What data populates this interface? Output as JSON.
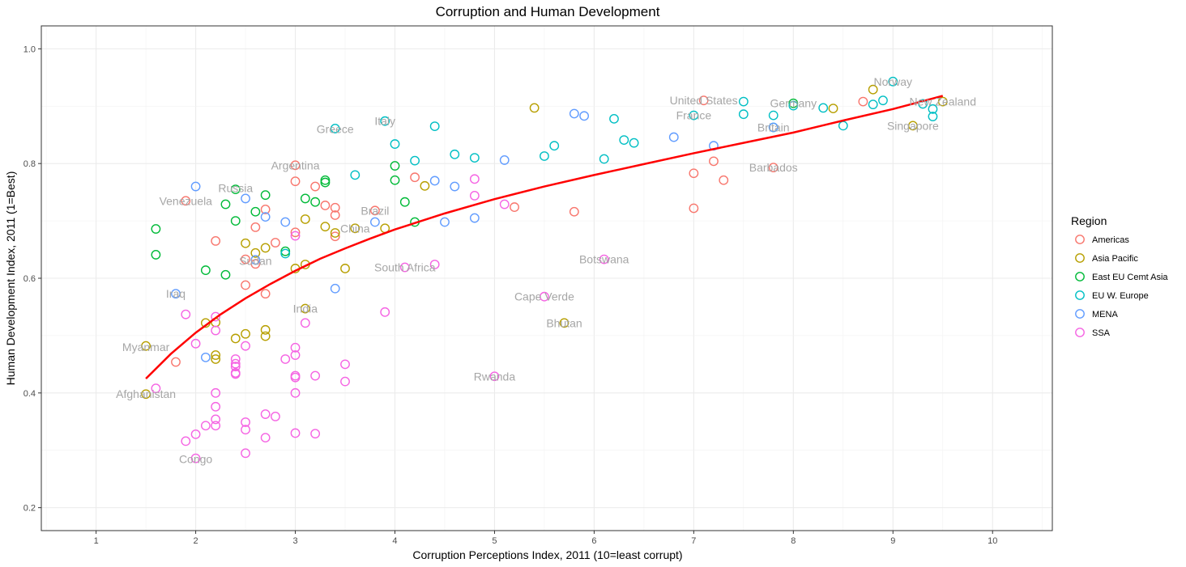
{
  "chart_data": {
    "type": "scatter",
    "title": "Corruption and Human Development",
    "xlabel": "Corruption Perceptions Index, 2011 (10=least corrupt)",
    "ylabel": "Human Development Index, 2011 (1=Best)",
    "xlim": [
      0.45,
      10.6
    ],
    "ylim": [
      0.16,
      1.04
    ],
    "x_ticks": [
      1,
      2,
      3,
      4,
      5,
      6,
      7,
      8,
      9,
      10
    ],
    "y_ticks": [
      0.2,
      0.4,
      0.6,
      0.8,
      1.0
    ],
    "y_tick_labels": [
      "0.2",
      "0.4",
      "0.6",
      "0.8",
      "1.0"
    ],
    "grid": true,
    "legend": {
      "title": "Region",
      "position": "right"
    },
    "series": [
      {
        "name": "Americas",
        "color": "#F8766D",
        "points": [
          [
            1.8,
            0.454
          ],
          [
            1.9,
            0.735
          ],
          [
            2.2,
            0.665
          ],
          [
            2.5,
            0.633
          ],
          [
            2.5,
            0.588
          ],
          [
            2.6,
            0.689
          ],
          [
            2.6,
            0.625
          ],
          [
            2.7,
            0.72
          ],
          [
            2.7,
            0.573
          ],
          [
            2.8,
            0.662
          ],
          [
            3.0,
            0.797
          ],
          [
            3.0,
            0.769
          ],
          [
            3.0,
            0.68
          ],
          [
            3.2,
            0.76
          ],
          [
            3.3,
            0.727
          ],
          [
            3.4,
            0.723
          ],
          [
            3.4,
            0.71
          ],
          [
            3.4,
            0.673
          ],
          [
            3.8,
            0.718
          ],
          [
            4.2,
            0.776
          ],
          [
            5.2,
            0.724
          ],
          [
            5.8,
            0.716
          ],
          [
            7.0,
            0.783
          ],
          [
            7.0,
            0.722
          ],
          [
            7.1,
            0.91
          ],
          [
            7.2,
            0.804
          ],
          [
            7.3,
            0.771
          ],
          [
            7.8,
            0.793
          ],
          [
            8.7,
            0.908
          ]
        ]
      },
      {
        "name": "Asia Pacific",
        "color": "#B79F00",
        "points": [
          [
            1.5,
            0.482
          ],
          [
            1.5,
            0.398
          ],
          [
            2.1,
            0.522
          ],
          [
            2.2,
            0.523
          ],
          [
            2.2,
            0.466
          ],
          [
            2.2,
            0.459
          ],
          [
            2.4,
            0.495
          ],
          [
            2.5,
            0.661
          ],
          [
            2.5,
            0.503
          ],
          [
            2.6,
            0.644
          ],
          [
            2.7,
            0.51
          ],
          [
            2.7,
            0.499
          ],
          [
            2.7,
            0.653
          ],
          [
            3.0,
            0.617
          ],
          [
            3.1,
            0.547
          ],
          [
            3.1,
            0.703
          ],
          [
            3.1,
            0.624
          ],
          [
            3.3,
            0.69
          ],
          [
            3.4,
            0.679
          ],
          [
            3.5,
            0.617
          ],
          [
            3.6,
            0.687
          ],
          [
            3.9,
            0.687
          ],
          [
            4.3,
            0.761
          ],
          [
            5.4,
            0.897
          ],
          [
            5.7,
            0.522
          ],
          [
            8.4,
            0.896
          ],
          [
            8.8,
            0.929
          ],
          [
            9.2,
            0.866
          ],
          [
            9.5,
            0.908
          ]
        ]
      },
      {
        "name": "East EU Cemt Asia",
        "color": "#00BA38",
        "points": [
          [
            1.6,
            0.686
          ],
          [
            1.6,
            0.641
          ],
          [
            2.1,
            0.614
          ],
          [
            2.3,
            0.729
          ],
          [
            2.3,
            0.606
          ],
          [
            2.4,
            0.755
          ],
          [
            2.4,
            0.7
          ],
          [
            2.6,
            0.716
          ],
          [
            2.7,
            0.745
          ],
          [
            2.9,
            0.647
          ],
          [
            3.1,
            0.739
          ],
          [
            3.2,
            0.733
          ],
          [
            3.3,
            0.771
          ],
          [
            3.3,
            0.767
          ],
          [
            4.0,
            0.796
          ],
          [
            4.0,
            0.771
          ],
          [
            4.1,
            0.733
          ],
          [
            4.2,
            0.698
          ],
          [
            8.0,
            0.905
          ]
        ]
      },
      {
        "name": "EU W. Europe",
        "color": "#00BFC4",
        "points": [
          [
            2.9,
            0.643
          ],
          [
            3.4,
            0.861
          ],
          [
            3.6,
            0.78
          ],
          [
            3.9,
            0.874
          ],
          [
            4.0,
            0.834
          ],
          [
            4.2,
            0.805
          ],
          [
            4.4,
            0.865
          ],
          [
            4.6,
            0.816
          ],
          [
            4.8,
            0.81
          ],
          [
            5.5,
            0.813
          ],
          [
            5.6,
            0.831
          ],
          [
            6.1,
            0.808
          ],
          [
            6.2,
            0.878
          ],
          [
            6.3,
            0.841
          ],
          [
            6.4,
            0.836
          ],
          [
            7.0,
            0.884
          ],
          [
            7.5,
            0.908
          ],
          [
            7.5,
            0.886
          ],
          [
            7.8,
            0.884
          ],
          [
            7.8,
            0.863
          ],
          [
            8.0,
            0.901
          ],
          [
            8.3,
            0.897
          ],
          [
            8.5,
            0.866
          ],
          [
            8.8,
            0.903
          ],
          [
            8.9,
            0.91
          ],
          [
            9.0,
            0.943
          ],
          [
            9.3,
            0.904
          ],
          [
            9.4,
            0.895
          ],
          [
            9.4,
            0.882
          ]
        ]
      },
      {
        "name": "MENA",
        "color": "#619CFF",
        "points": [
          [
            1.8,
            0.573
          ],
          [
            2.0,
            0.76
          ],
          [
            2.1,
            0.462
          ],
          [
            2.5,
            0.739
          ],
          [
            2.6,
            0.632
          ],
          [
            2.7,
            0.707
          ],
          [
            2.9,
            0.698
          ],
          [
            3.4,
            0.582
          ],
          [
            3.8,
            0.698
          ],
          [
            4.4,
            0.77
          ],
          [
            4.5,
            0.698
          ],
          [
            4.6,
            0.76
          ],
          [
            4.8,
            0.705
          ],
          [
            5.1,
            0.806
          ],
          [
            5.8,
            0.887
          ],
          [
            5.9,
            0.883
          ],
          [
            6.8,
            0.846
          ],
          [
            7.2,
            0.831
          ],
          [
            7.8,
            0.863
          ]
        ]
      },
      {
        "name": "SSA",
        "color": "#F564E3",
        "points": [
          [
            1.6,
            0.408
          ],
          [
            1.9,
            0.537
          ],
          [
            1.9,
            0.316
          ],
          [
            2.0,
            0.486
          ],
          [
            2.0,
            0.328
          ],
          [
            2.0,
            0.286
          ],
          [
            2.1,
            0.343
          ],
          [
            2.2,
            0.533
          ],
          [
            2.2,
            0.509
          ],
          [
            2.2,
            0.4
          ],
          [
            2.2,
            0.376
          ],
          [
            2.2,
            0.354
          ],
          [
            2.2,
            0.343
          ],
          [
            2.4,
            0.459
          ],
          [
            2.4,
            0.451
          ],
          [
            2.4,
            0.446
          ],
          [
            2.4,
            0.435
          ],
          [
            2.4,
            0.433
          ],
          [
            2.5,
            0.482
          ],
          [
            2.5,
            0.349
          ],
          [
            2.5,
            0.336
          ],
          [
            2.5,
            0.295
          ],
          [
            2.7,
            0.363
          ],
          [
            2.7,
            0.322
          ],
          [
            2.8,
            0.359
          ],
          [
            2.9,
            0.459
          ],
          [
            3.0,
            0.674
          ],
          [
            3.0,
            0.479
          ],
          [
            3.0,
            0.466
          ],
          [
            3.0,
            0.43
          ],
          [
            3.0,
            0.427
          ],
          [
            3.0,
            0.4
          ],
          [
            3.0,
            0.33
          ],
          [
            3.1,
            0.522
          ],
          [
            3.2,
            0.43
          ],
          [
            3.2,
            0.329
          ],
          [
            3.5,
            0.45
          ],
          [
            3.5,
            0.42
          ],
          [
            3.9,
            0.541
          ],
          [
            4.1,
            0.619
          ],
          [
            4.4,
            0.624
          ],
          [
            4.8,
            0.773
          ],
          [
            4.8,
            0.744
          ],
          [
            5.0,
            0.429
          ],
          [
            5.1,
            0.729
          ],
          [
            5.5,
            0.568
          ],
          [
            6.1,
            0.633
          ]
        ]
      }
    ],
    "fit_line": {
      "color": "#FF0000",
      "x": [
        1.5,
        1.75,
        2.0,
        2.25,
        2.5,
        2.75,
        3.0,
        3.25,
        3.5,
        3.75,
        4.0,
        4.5,
        5.0,
        5.5,
        6.0,
        6.5,
        7.0,
        7.5,
        8.0,
        8.5,
        9.0,
        9.5
      ],
      "y": [
        0.425,
        0.468,
        0.505,
        0.537,
        0.565,
        0.59,
        0.613,
        0.634,
        0.652,
        0.669,
        0.685,
        0.713,
        0.738,
        0.76,
        0.78,
        0.799,
        0.818,
        0.836,
        0.854,
        0.875,
        0.895,
        0.918
      ]
    },
    "annotations": [
      {
        "text": "Afghanistan",
        "x": 1.5,
        "y": 0.398
      },
      {
        "text": "Myanmar",
        "x": 1.5,
        "y": 0.48
      },
      {
        "text": "Congo",
        "x": 2.0,
        "y": 0.285
      },
      {
        "text": "Iraq",
        "x": 1.8,
        "y": 0.573
      },
      {
        "text": "Venezuela",
        "x": 1.9,
        "y": 0.735
      },
      {
        "text": "Russia",
        "x": 2.4,
        "y": 0.757
      },
      {
        "text": "Sudan",
        "x": 2.6,
        "y": 0.63
      },
      {
        "text": "India",
        "x": 3.1,
        "y": 0.547
      },
      {
        "text": "Argentina",
        "x": 3.0,
        "y": 0.797
      },
      {
        "text": "Greece",
        "x": 3.4,
        "y": 0.86
      },
      {
        "text": "Italy",
        "x": 3.9,
        "y": 0.874
      },
      {
        "text": "Brazil",
        "x": 3.8,
        "y": 0.718
      },
      {
        "text": "China",
        "x": 3.6,
        "y": 0.687
      },
      {
        "text": "South Africa",
        "x": 4.1,
        "y": 0.619
      },
      {
        "text": "Cape Verde",
        "x": 5.5,
        "y": 0.568
      },
      {
        "text": "Bhutan",
        "x": 5.7,
        "y": 0.522
      },
      {
        "text": "Rwanda",
        "x": 5.0,
        "y": 0.429
      },
      {
        "text": "Botswana",
        "x": 6.1,
        "y": 0.633
      },
      {
        "text": "United States",
        "x": 7.1,
        "y": 0.91
      },
      {
        "text": "France",
        "x": 7.0,
        "y": 0.884
      },
      {
        "text": "Germany",
        "x": 8.0,
        "y": 0.905
      },
      {
        "text": "Britain",
        "x": 7.8,
        "y": 0.863
      },
      {
        "text": "Barbados",
        "x": 7.8,
        "y": 0.793
      },
      {
        "text": "Norway",
        "x": 9.0,
        "y": 0.943
      },
      {
        "text": "New Zealand",
        "x": 9.5,
        "y": 0.908
      },
      {
        "text": "Singapore",
        "x": 9.2,
        "y": 0.866
      }
    ]
  }
}
